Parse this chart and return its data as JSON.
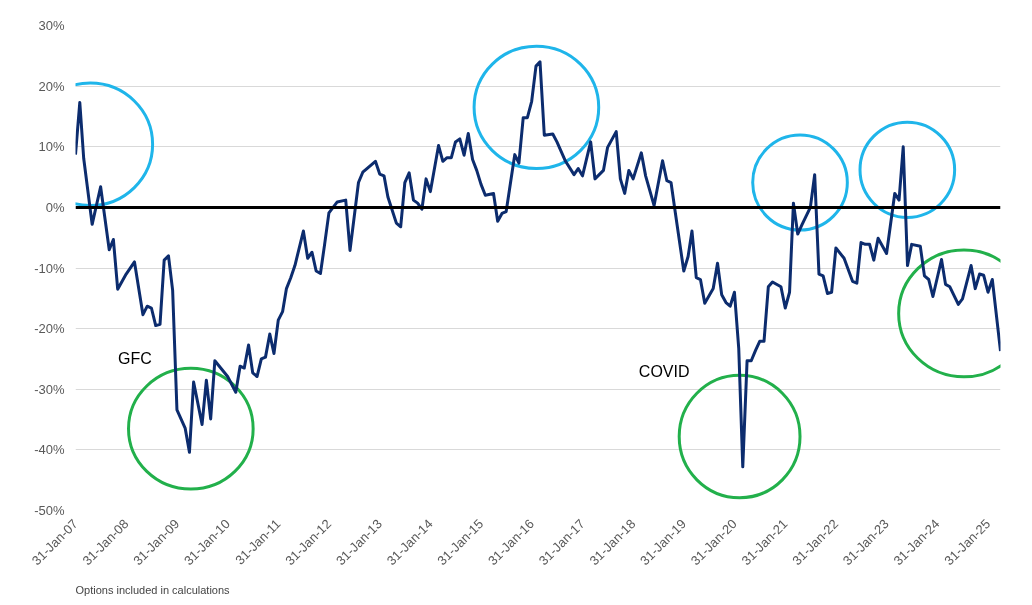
{
  "chart_data": {
    "type": "line",
    "x": [
      "2007-01",
      "2007-02",
      "2007-03",
      "2007-05",
      "2007-07",
      "2007-09",
      "2007-10",
      "2007-11",
      "2008-01",
      "2008-03",
      "2008-05",
      "2008-06",
      "2008-07",
      "2008-08",
      "2008-09",
      "2008-10",
      "2008-11",
      "2008-12",
      "2009-01",
      "2009-03",
      "2009-04",
      "2009-05",
      "2009-07",
      "2009-08",
      "2009-09",
      "2009-10",
      "2010-01",
      "2010-03",
      "2010-04",
      "2010-05",
      "2010-06",
      "2010-07",
      "2010-08",
      "2010-09",
      "2010-10",
      "2010-11",
      "2010-12",
      "2011-01",
      "2011-02",
      "2011-03",
      "2011-04",
      "2011-05",
      "2011-07",
      "2011-08",
      "2011-09",
      "2011-10",
      "2011-11",
      "2011-12",
      "2012-01",
      "2012-03",
      "2012-05",
      "2012-06",
      "2012-08",
      "2012-09",
      "2012-10",
      "2012-12",
      "2013-01",
      "2013-02",
      "2013-03",
      "2013-05",
      "2013-06",
      "2013-07",
      "2013-08",
      "2013-09",
      "2013-10",
      "2013-11",
      "2013-12",
      "2014-01",
      "2014-03",
      "2014-04",
      "2014-05",
      "2014-06",
      "2014-07",
      "2014-08",
      "2014-09",
      "2014-10",
      "2014-11",
      "2014-12",
      "2015-01",
      "2015-02",
      "2015-04",
      "2015-05",
      "2015-06",
      "2015-07",
      "2015-09",
      "2015-10",
      "2015-11",
      "2015-12",
      "2016-01",
      "2016-02",
      "2016-03",
      "2016-04",
      "2016-06",
      "2016-07",
      "2016-09",
      "2016-11",
      "2016-12",
      "2017-01",
      "2017-03",
      "2017-04",
      "2017-06",
      "2017-07",
      "2017-09",
      "2017-10",
      "2017-11",
      "2017-12",
      "2018-01",
      "2018-03",
      "2018-04",
      "2018-06",
      "2018-08",
      "2018-09",
      "2018-10",
      "2018-11",
      "2019-01",
      "2019-02",
      "2019-03",
      "2019-04",
      "2019-05",
      "2019-06",
      "2019-08",
      "2019-09",
      "2019-10",
      "2019-11",
      "2019-12",
      "2020-01",
      "2020-02",
      "2020-03",
      "2020-04",
      "2020-05",
      "2020-06",
      "2020-07",
      "2020-08",
      "2020-09",
      "2020-10",
      "2020-12",
      "2021-01",
      "2021-02",
      "2021-03",
      "2021-04",
      "2021-05",
      "2021-07",
      "2021-08",
      "2021-09",
      "2021-10",
      "2021-11",
      "2021-12",
      "2022-01",
      "2022-03",
      "2022-05",
      "2022-06",
      "2022-07",
      "2022-08",
      "2022-09",
      "2022-10",
      "2022-11",
      "2023-01",
      "2023-03",
      "2023-04",
      "2023-05",
      "2023-06",
      "2023-07",
      "2023-09",
      "2023-10",
      "2023-11",
      "2023-12",
      "2024-02",
      "2024-03",
      "2024-04",
      "2024-06",
      "2024-07",
      "2024-09",
      "2024-10",
      "2024-11",
      "2024-12",
      "2025-01",
      "2025-02",
      "2025-04"
    ],
    "series": [
      {
        "color": "#0c2c6e",
        "values": [
          8.7,
          17.3,
          8.1,
          -2.8,
          3.4,
          -7.0,
          -5.3,
          -13.5,
          -11.0,
          -9.0,
          -17.7,
          -16.3,
          -16.6,
          -19.5,
          -19.3,
          -8.7,
          -8.0,
          -13.7,
          -33.4,
          -36.4,
          -40.4,
          -28.8,
          -35.8,
          -28.5,
          -34.9,
          -25.3,
          -27.9,
          -30.5,
          -26.2,
          -26.5,
          -22.7,
          -27.3,
          -27.9,
          -25.0,
          -24.7,
          -20.9,
          -24.1,
          -18.6,
          -17.2,
          -13.4,
          -11.6,
          -9.6,
          -3.9,
          -8.4,
          -7.4,
          -10.5,
          -10.9,
          -6.1,
          -0.9,
          0.9,
          1.2,
          -7.1,
          4.1,
          5.8,
          6.4,
          7.6,
          5.5,
          5.2,
          1.7,
          -2.6,
          -3.2,
          4.1,
          5.7,
          1.2,
          0.7,
          -0.3,
          4.7,
          2.6,
          10.2,
          7.6,
          8.2,
          8.2,
          10.8,
          11.3,
          8.6,
          12.2,
          7.9,
          6.1,
          3.8,
          2.0,
          2.3,
          -2.3,
          -1.0,
          -0.7,
          8.7,
          7.3,
          14.8,
          14.8,
          17.5,
          23.3,
          24.0,
          11.9,
          12.1,
          10.8,
          7.6,
          5.4,
          6.4,
          5.2,
          10.8,
          4.7,
          6.1,
          9.9,
          12.5,
          4.7,
          2.3,
          6.1,
          4.7,
          9.0,
          5.2,
          0.3,
          7.7,
          4.4,
          4.1,
          -0.9,
          -10.5,
          -8.1,
          -3.9,
          -11.6,
          -11.9,
          -15.8,
          -13.4,
          -9.2,
          -14.4,
          -15.7,
          -16.3,
          -14.0,
          -23.3,
          -42.8,
          -25.3,
          -25.3,
          -23.6,
          -22.1,
          -22.1,
          -13.1,
          -12.3,
          -13.1,
          -16.6,
          -14.0,
          0.7,
          -4.4,
          -2.9,
          0.0,
          5.4,
          -11.0,
          -11.3,
          -14.2,
          -14.0,
          -6.7,
          -8.4,
          -12.2,
          -12.5,
          -5.8,
          -6.1,
          -6.1,
          -8.7,
          -5.1,
          -7.6,
          2.3,
          1.2,
          10.0,
          -9.6,
          -6.1,
          -6.4,
          -11.3,
          -11.9,
          -14.7,
          -8.6,
          -12.7,
          -13.1,
          -16.0,
          -15.1,
          -9.6,
          -13.4,
          -11.0,
          -11.2,
          -14.0,
          -11.9,
          -23.7
        ]
      }
    ],
    "xlim": [
      "2007-01",
      "2025-04"
    ],
    "xticks": [
      {
        "value": "2007-01",
        "label": "31-Jan-07"
      },
      {
        "value": "2008-01",
        "label": "31-Jan-08"
      },
      {
        "value": "2009-01",
        "label": "31-Jan-09"
      },
      {
        "value": "2010-01",
        "label": "31-Jan-10"
      },
      {
        "value": "2011-01",
        "label": "31-Jan-11"
      },
      {
        "value": "2012-01",
        "label": "31-Jan-12"
      },
      {
        "value": "2013-01",
        "label": "31-Jan-13"
      },
      {
        "value": "2014-01",
        "label": "31-Jan-14"
      },
      {
        "value": "2015-01",
        "label": "31-Jan-15"
      },
      {
        "value": "2016-01",
        "label": "31-Jan-16"
      },
      {
        "value": "2017-01",
        "label": "31-Jan-17"
      },
      {
        "value": "2018-01",
        "label": "31-Jan-18"
      },
      {
        "value": "2019-01",
        "label": "31-Jan-19"
      },
      {
        "value": "2020-01",
        "label": "31-Jan-20"
      },
      {
        "value": "2021-01",
        "label": "31-Jan-21"
      },
      {
        "value": "2022-01",
        "label": "31-Jan-22"
      },
      {
        "value": "2023-01",
        "label": "31-Jan-23"
      },
      {
        "value": "2024-01",
        "label": "31-Jan-24"
      },
      {
        "value": "2025-01",
        "label": "31-Jan-25"
      }
    ],
    "ylim": [
      -50,
      30
    ],
    "yticks": [
      {
        "value": -50,
        "label": "-50%"
      },
      {
        "value": -40,
        "label": "-40%"
      },
      {
        "value": -30,
        "label": "-30%"
      },
      {
        "value": -20,
        "label": "-20%"
      },
      {
        "value": -10,
        "label": "-10%"
      },
      {
        "value": 0,
        "label": "0%"
      },
      {
        "value": 10,
        "label": "10%"
      },
      {
        "value": 20,
        "label": "20%"
      },
      {
        "value": 30,
        "label": "30%"
      }
    ],
    "grid": "y",
    "line_style": "solid",
    "marker": "none",
    "ref_lines": [
      {
        "axis": "y",
        "value": 0,
        "color": "#000000"
      }
    ],
    "annotations": [
      "GFC",
      "COVID",
      "Options included in calculations"
    ]
  }
}
